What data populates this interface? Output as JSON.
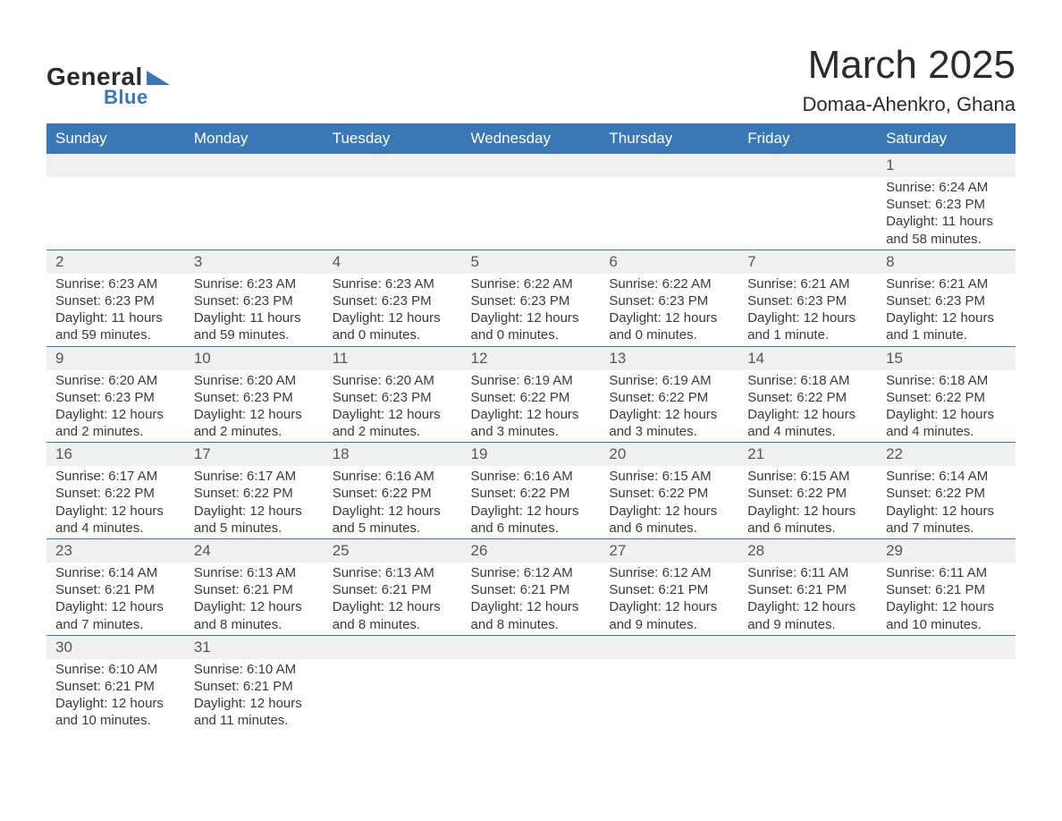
{
  "logo": {
    "general": "General",
    "blue": "Blue",
    "triangle_color": "#3a78b5"
  },
  "header": {
    "month_title": "March 2025",
    "location": "Domaa-Ahenkro, Ghana"
  },
  "colors": {
    "header_bg": "#3a78b5",
    "header_fg": "#ffffff",
    "daynum_bg": "#eff0f0",
    "daynum_border": "#3a78b5",
    "text": "#3a3a3a"
  },
  "day_headers": [
    "Sunday",
    "Monday",
    "Tuesday",
    "Wednesday",
    "Thursday",
    "Friday",
    "Saturday"
  ],
  "weeks": [
    [
      {
        "blank": true
      },
      {
        "blank": true
      },
      {
        "blank": true
      },
      {
        "blank": true
      },
      {
        "blank": true
      },
      {
        "blank": true
      },
      {
        "num": "1",
        "sunrise": "Sunrise: 6:24 AM",
        "sunset": "Sunset: 6:23 PM",
        "daylight1": "Daylight: 11 hours",
        "daylight2": "and 58 minutes."
      }
    ],
    [
      {
        "num": "2",
        "sunrise": "Sunrise: 6:23 AM",
        "sunset": "Sunset: 6:23 PM",
        "daylight1": "Daylight: 11 hours",
        "daylight2": "and 59 minutes."
      },
      {
        "num": "3",
        "sunrise": "Sunrise: 6:23 AM",
        "sunset": "Sunset: 6:23 PM",
        "daylight1": "Daylight: 11 hours",
        "daylight2": "and 59 minutes."
      },
      {
        "num": "4",
        "sunrise": "Sunrise: 6:23 AM",
        "sunset": "Sunset: 6:23 PM",
        "daylight1": "Daylight: 12 hours",
        "daylight2": "and 0 minutes."
      },
      {
        "num": "5",
        "sunrise": "Sunrise: 6:22 AM",
        "sunset": "Sunset: 6:23 PM",
        "daylight1": "Daylight: 12 hours",
        "daylight2": "and 0 minutes."
      },
      {
        "num": "6",
        "sunrise": "Sunrise: 6:22 AM",
        "sunset": "Sunset: 6:23 PM",
        "daylight1": "Daylight: 12 hours",
        "daylight2": "and 0 minutes."
      },
      {
        "num": "7",
        "sunrise": "Sunrise: 6:21 AM",
        "sunset": "Sunset: 6:23 PM",
        "daylight1": "Daylight: 12 hours",
        "daylight2": "and 1 minute."
      },
      {
        "num": "8",
        "sunrise": "Sunrise: 6:21 AM",
        "sunset": "Sunset: 6:23 PM",
        "daylight1": "Daylight: 12 hours",
        "daylight2": "and 1 minute."
      }
    ],
    [
      {
        "num": "9",
        "sunrise": "Sunrise: 6:20 AM",
        "sunset": "Sunset: 6:23 PM",
        "daylight1": "Daylight: 12 hours",
        "daylight2": "and 2 minutes."
      },
      {
        "num": "10",
        "sunrise": "Sunrise: 6:20 AM",
        "sunset": "Sunset: 6:23 PM",
        "daylight1": "Daylight: 12 hours",
        "daylight2": "and 2 minutes."
      },
      {
        "num": "11",
        "sunrise": "Sunrise: 6:20 AM",
        "sunset": "Sunset: 6:23 PM",
        "daylight1": "Daylight: 12 hours",
        "daylight2": "and 2 minutes."
      },
      {
        "num": "12",
        "sunrise": "Sunrise: 6:19 AM",
        "sunset": "Sunset: 6:22 PM",
        "daylight1": "Daylight: 12 hours",
        "daylight2": "and 3 minutes."
      },
      {
        "num": "13",
        "sunrise": "Sunrise: 6:19 AM",
        "sunset": "Sunset: 6:22 PM",
        "daylight1": "Daylight: 12 hours",
        "daylight2": "and 3 minutes."
      },
      {
        "num": "14",
        "sunrise": "Sunrise: 6:18 AM",
        "sunset": "Sunset: 6:22 PM",
        "daylight1": "Daylight: 12 hours",
        "daylight2": "and 4 minutes."
      },
      {
        "num": "15",
        "sunrise": "Sunrise: 6:18 AM",
        "sunset": "Sunset: 6:22 PM",
        "daylight1": "Daylight: 12 hours",
        "daylight2": "and 4 minutes."
      }
    ],
    [
      {
        "num": "16",
        "sunrise": "Sunrise: 6:17 AM",
        "sunset": "Sunset: 6:22 PM",
        "daylight1": "Daylight: 12 hours",
        "daylight2": "and 4 minutes."
      },
      {
        "num": "17",
        "sunrise": "Sunrise: 6:17 AM",
        "sunset": "Sunset: 6:22 PM",
        "daylight1": "Daylight: 12 hours",
        "daylight2": "and 5 minutes."
      },
      {
        "num": "18",
        "sunrise": "Sunrise: 6:16 AM",
        "sunset": "Sunset: 6:22 PM",
        "daylight1": "Daylight: 12 hours",
        "daylight2": "and 5 minutes."
      },
      {
        "num": "19",
        "sunrise": "Sunrise: 6:16 AM",
        "sunset": "Sunset: 6:22 PM",
        "daylight1": "Daylight: 12 hours",
        "daylight2": "and 6 minutes."
      },
      {
        "num": "20",
        "sunrise": "Sunrise: 6:15 AM",
        "sunset": "Sunset: 6:22 PM",
        "daylight1": "Daylight: 12 hours",
        "daylight2": "and 6 minutes."
      },
      {
        "num": "21",
        "sunrise": "Sunrise: 6:15 AM",
        "sunset": "Sunset: 6:22 PM",
        "daylight1": "Daylight: 12 hours",
        "daylight2": "and 6 minutes."
      },
      {
        "num": "22",
        "sunrise": "Sunrise: 6:14 AM",
        "sunset": "Sunset: 6:22 PM",
        "daylight1": "Daylight: 12 hours",
        "daylight2": "and 7 minutes."
      }
    ],
    [
      {
        "num": "23",
        "sunrise": "Sunrise: 6:14 AM",
        "sunset": "Sunset: 6:21 PM",
        "daylight1": "Daylight: 12 hours",
        "daylight2": "and 7 minutes."
      },
      {
        "num": "24",
        "sunrise": "Sunrise: 6:13 AM",
        "sunset": "Sunset: 6:21 PM",
        "daylight1": "Daylight: 12 hours",
        "daylight2": "and 8 minutes."
      },
      {
        "num": "25",
        "sunrise": "Sunrise: 6:13 AM",
        "sunset": "Sunset: 6:21 PM",
        "daylight1": "Daylight: 12 hours",
        "daylight2": "and 8 minutes."
      },
      {
        "num": "26",
        "sunrise": "Sunrise: 6:12 AM",
        "sunset": "Sunset: 6:21 PM",
        "daylight1": "Daylight: 12 hours",
        "daylight2": "and 8 minutes."
      },
      {
        "num": "27",
        "sunrise": "Sunrise: 6:12 AM",
        "sunset": "Sunset: 6:21 PM",
        "daylight1": "Daylight: 12 hours",
        "daylight2": "and 9 minutes."
      },
      {
        "num": "28",
        "sunrise": "Sunrise: 6:11 AM",
        "sunset": "Sunset: 6:21 PM",
        "daylight1": "Daylight: 12 hours",
        "daylight2": "and 9 minutes."
      },
      {
        "num": "29",
        "sunrise": "Sunrise: 6:11 AM",
        "sunset": "Sunset: 6:21 PM",
        "daylight1": "Daylight: 12 hours",
        "daylight2": "and 10 minutes."
      }
    ],
    [
      {
        "num": "30",
        "sunrise": "Sunrise: 6:10 AM",
        "sunset": "Sunset: 6:21 PM",
        "daylight1": "Daylight: 12 hours",
        "daylight2": "and 10 minutes."
      },
      {
        "num": "31",
        "sunrise": "Sunrise: 6:10 AM",
        "sunset": "Sunset: 6:21 PM",
        "daylight1": "Daylight: 12 hours",
        "daylight2": "and 11 minutes."
      },
      {
        "blank": true
      },
      {
        "blank": true
      },
      {
        "blank": true
      },
      {
        "blank": true
      },
      {
        "blank": true
      }
    ]
  ]
}
